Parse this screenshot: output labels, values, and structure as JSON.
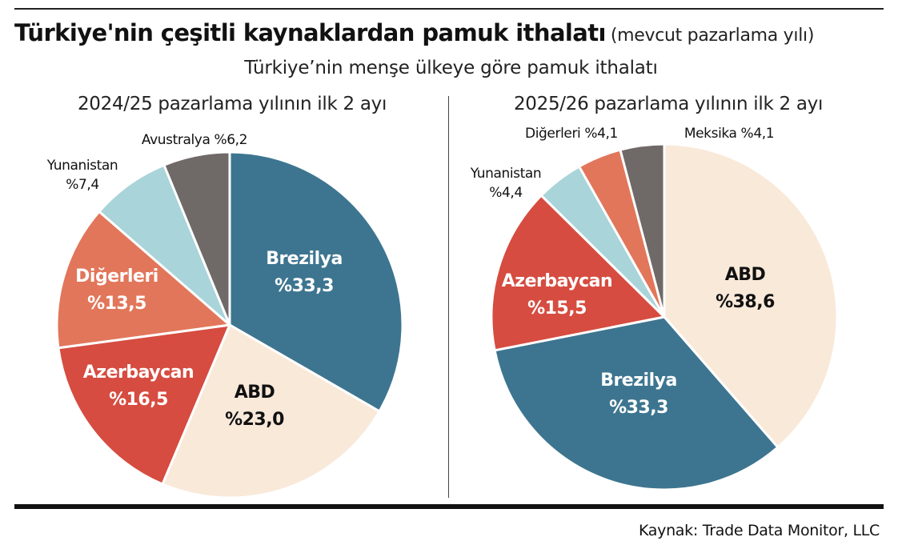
{
  "title": "Türkiye'nin çeşitli kaynaklardan pamuk ithalatı",
  "title_suffix": "(mevcut pazarlama yılı)",
  "subtitle": "Türkiye’nin menşe ülkeye göre pamuk ithalatı",
  "source": "Kaynak: Trade Data Monitor, LLC",
  "chart_data": [
    {
      "type": "pie",
      "title": "2024/25 pazarlama yılının ilk 2 ayı",
      "slices": [
        {
          "name": "Brezilya",
          "value": 33.3,
          "label": "%33,3",
          "color": "#3d7590",
          "text_color": "#ffffff",
          "placement": "inside"
        },
        {
          "name": "ABD",
          "value": 23.0,
          "label": "%23,0",
          "color": "#f9e9d9",
          "text_color": "#111111",
          "placement": "inside"
        },
        {
          "name": "Azerbaycan",
          "value": 16.5,
          "label": "%16,5",
          "color": "#d64c40",
          "text_color": "#ffffff",
          "placement": "inside"
        },
        {
          "name": "Diğerleri",
          "value": 13.5,
          "label": "%13,5",
          "color": "#e2765a",
          "text_color": "#ffffff",
          "placement": "inside"
        },
        {
          "name": "Yunanistan",
          "value": 7.4,
          "label": "%7,4",
          "color": "#a9d4d9",
          "text_color": "#111111",
          "placement": "outside"
        },
        {
          "name": "Avustralya",
          "value": 6.2,
          "label": "%6,2",
          "color": "#6f6a67",
          "text_color": "#111111",
          "placement": "outside"
        }
      ]
    },
    {
      "type": "pie",
      "title": "2025/26 pazarlama yılının ilk 2 ayı",
      "slices": [
        {
          "name": "ABD",
          "value": 38.6,
          "label": "%38,6",
          "color": "#f9e9d9",
          "text_color": "#111111",
          "placement": "inside"
        },
        {
          "name": "Brezilya",
          "value": 33.3,
          "label": "%33,3",
          "color": "#3d7590",
          "text_color": "#ffffff",
          "placement": "inside"
        },
        {
          "name": "Azerbaycan",
          "value": 15.5,
          "label": "%15,5",
          "color": "#d64c40",
          "text_color": "#ffffff",
          "placement": "inside"
        },
        {
          "name": "Yunanistan",
          "value": 4.4,
          "label": "%4,4",
          "color": "#a9d4d9",
          "text_color": "#111111",
          "placement": "outside"
        },
        {
          "name": "Diğerleri",
          "value": 4.1,
          "label": "%4,1",
          "color": "#e2765a",
          "text_color": "#111111",
          "placement": "outside"
        },
        {
          "name": "Meksika",
          "value": 4.1,
          "label": "%4,1",
          "color": "#6f6a67",
          "text_color": "#111111",
          "placement": "outside"
        }
      ]
    }
  ]
}
